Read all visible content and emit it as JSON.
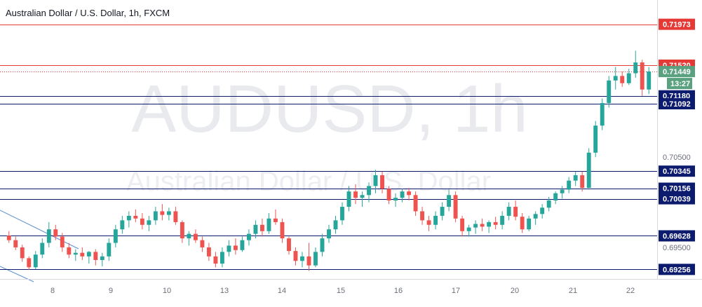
{
  "chart_data": {
    "type": "candlestick",
    "title": "Australian Dollar / U.S. Dollar, 1h, FXCM",
    "watermark": {
      "symbol": "AUDUSD, 1h",
      "name": "Australian Dollar / U.S. Dollar"
    },
    "x_tick_labels": [
      "8",
      "9",
      "10",
      "13",
      "14",
      "15",
      "16",
      "17",
      "20",
      "21",
      "22"
    ],
    "y_tick_labels": [
      "0.70500",
      "0.69500"
    ],
    "ylim": [
      0.6915,
      0.7218
    ],
    "colors": {
      "up": "#26a69a",
      "down": "#ef5350",
      "resistance": "#e53935",
      "support": "#0d1b6e",
      "last_price_bg": "#5aa17f",
      "countdown_bg": "#5aa17f"
    },
    "resistance_levels": [
      "0.71973",
      "0.71520"
    ],
    "support_levels": [
      "0.71180",
      "0.71092",
      "0.70345",
      "0.70156",
      "0.70039",
      "0.69628",
      "0.69256"
    ],
    "last_price": {
      "value": "0.71449",
      "countdown": "13:27"
    },
    "grid": false,
    "candles": [
      [
        0.6963,
        0.6968,
        0.6955,
        0.6958
      ],
      [
        0.6958,
        0.6962,
        0.6947,
        0.695
      ],
      [
        0.695,
        0.6953,
        0.6934,
        0.6938
      ],
      [
        0.6938,
        0.694,
        0.6925,
        0.6928
      ],
      [
        0.6928,
        0.6946,
        0.6926,
        0.6942
      ],
      [
        0.6942,
        0.696,
        0.6938,
        0.6955
      ],
      [
        0.6955,
        0.6978,
        0.695,
        0.697
      ],
      [
        0.697,
        0.6975,
        0.6958,
        0.6962
      ],
      [
        0.6962,
        0.6966,
        0.6945,
        0.695
      ],
      [
        0.695,
        0.6955,
        0.6938,
        0.6942
      ],
      [
        0.6942,
        0.6948,
        0.6935,
        0.6944
      ],
      [
        0.6944,
        0.695,
        0.6936,
        0.694
      ],
      [
        0.694,
        0.6946,
        0.6932,
        0.6945
      ],
      [
        0.6945,
        0.6948,
        0.693,
        0.6936
      ],
      [
        0.6936,
        0.6944,
        0.6929,
        0.694
      ],
      [
        0.694,
        0.696,
        0.6935,
        0.6955
      ],
      [
        0.6955,
        0.6975,
        0.695,
        0.697
      ],
      [
        0.697,
        0.6985,
        0.6965,
        0.698
      ],
      [
        0.698,
        0.699,
        0.6972,
        0.6985
      ],
      [
        0.6985,
        0.6992,
        0.6978,
        0.6982
      ],
      [
        0.6982,
        0.6988,
        0.697,
        0.6975
      ],
      [
        0.6975,
        0.6985,
        0.6968,
        0.698
      ],
      [
        0.698,
        0.6995,
        0.6975,
        0.699
      ],
      [
        0.699,
        0.6998,
        0.698,
        0.6986
      ],
      [
        0.6986,
        0.6994,
        0.698,
        0.699
      ],
      [
        0.699,
        0.6995,
        0.6975,
        0.6978
      ],
      [
        0.6978,
        0.698,
        0.6955,
        0.696
      ],
      [
        0.696,
        0.6968,
        0.6952,
        0.6965
      ],
      [
        0.6965,
        0.697,
        0.6955,
        0.6958
      ],
      [
        0.6958,
        0.6962,
        0.6945,
        0.695
      ],
      [
        0.695,
        0.6955,
        0.6935,
        0.694
      ],
      [
        0.694,
        0.6945,
        0.6928,
        0.6932
      ],
      [
        0.6932,
        0.695,
        0.6928,
        0.6945
      ],
      [
        0.6945,
        0.6958,
        0.694,
        0.6952
      ],
      [
        0.6952,
        0.696,
        0.6942,
        0.6947
      ],
      [
        0.6947,
        0.6962,
        0.6945,
        0.6958
      ],
      [
        0.6958,
        0.697,
        0.6952,
        0.6965
      ],
      [
        0.6965,
        0.698,
        0.696,
        0.6975
      ],
      [
        0.6975,
        0.6982,
        0.6962,
        0.6968
      ],
      [
        0.6968,
        0.6988,
        0.6965,
        0.6982
      ],
      [
        0.6982,
        0.6992,
        0.6975,
        0.6978
      ],
      [
        0.6978,
        0.6982,
        0.6955,
        0.696
      ],
      [
        0.696,
        0.6962,
        0.6942,
        0.6946
      ],
      [
        0.6946,
        0.695,
        0.693,
        0.6935
      ],
      [
        0.6935,
        0.6945,
        0.6928,
        0.694
      ],
      [
        0.694,
        0.6955,
        0.6924,
        0.693
      ],
      [
        0.693,
        0.695,
        0.6928,
        0.6945
      ],
      [
        0.6945,
        0.6965,
        0.694,
        0.696
      ],
      [
        0.696,
        0.6975,
        0.6955,
        0.697
      ],
      [
        0.697,
        0.6985,
        0.6965,
        0.698
      ],
      [
        0.698,
        0.7,
        0.6975,
        0.6995
      ],
      [
        0.6995,
        0.7018,
        0.699,
        0.7012
      ],
      [
        0.7012,
        0.702,
        0.6998,
        0.7005
      ],
      [
        0.7005,
        0.7012,
        0.6995,
        0.7008
      ],
      [
        0.7008,
        0.7022,
        0.7,
        0.7018
      ],
      [
        0.7018,
        0.7036,
        0.701,
        0.703
      ],
      [
        0.703,
        0.7034,
        0.701,
        0.7015
      ],
      [
        0.7015,
        0.7018,
        0.6998,
        0.7002
      ],
      [
        0.7002,
        0.701,
        0.6995,
        0.7005
      ],
      [
        0.7005,
        0.7015,
        0.7,
        0.7012
      ],
      [
        0.7012,
        0.7016,
        0.7002,
        0.7008
      ],
      [
        0.7008,
        0.7012,
        0.6985,
        0.699
      ],
      [
        0.699,
        0.6995,
        0.6975,
        0.698
      ],
      [
        0.698,
        0.6985,
        0.6968,
        0.6975
      ],
      [
        0.6975,
        0.699,
        0.697,
        0.6985
      ],
      [
        0.6985,
        0.7,
        0.698,
        0.6995
      ],
      [
        0.6995,
        0.7014,
        0.699,
        0.7008
      ],
      [
        0.7008,
        0.7012,
        0.6978,
        0.6982
      ],
      [
        0.6982,
        0.6985,
        0.6962,
        0.6968
      ],
      [
        0.6968,
        0.6975,
        0.6962,
        0.6972
      ],
      [
        0.6972,
        0.698,
        0.6965,
        0.6976
      ],
      [
        0.6976,
        0.6982,
        0.6968,
        0.6973
      ],
      [
        0.6973,
        0.698,
        0.6966,
        0.6978
      ],
      [
        0.6978,
        0.6984,
        0.697,
        0.6975
      ],
      [
        0.6975,
        0.699,
        0.697,
        0.6985
      ],
      [
        0.6985,
        0.7,
        0.698,
        0.6995
      ],
      [
        0.6995,
        0.7002,
        0.698,
        0.6984
      ],
      [
        0.6984,
        0.6988,
        0.6966,
        0.697
      ],
      [
        0.697,
        0.6985,
        0.6968,
        0.6982
      ],
      [
        0.6982,
        0.699,
        0.6975,
        0.6987
      ],
      [
        0.6987,
        0.6998,
        0.6982,
        0.6994
      ],
      [
        0.6994,
        0.7006,
        0.699,
        0.7002
      ],
      [
        0.7002,
        0.7012,
        0.6998,
        0.701
      ],
      [
        0.701,
        0.7018,
        0.7004,
        0.7014
      ],
      [
        0.7014,
        0.7028,
        0.701,
        0.7024
      ],
      [
        0.7024,
        0.7034,
        0.7018,
        0.703
      ],
      [
        0.703,
        0.7034,
        0.7012,
        0.7016
      ],
      [
        0.7016,
        0.706,
        0.7014,
        0.7055
      ],
      [
        0.7055,
        0.709,
        0.705,
        0.7085
      ],
      [
        0.7085,
        0.7115,
        0.708,
        0.711
      ],
      [
        0.711,
        0.714,
        0.7105,
        0.7135
      ],
      [
        0.7135,
        0.715,
        0.7125,
        0.714
      ],
      [
        0.714,
        0.7145,
        0.7128,
        0.7132
      ],
      [
        0.7132,
        0.7148,
        0.713,
        0.7143
      ],
      [
        0.7143,
        0.7168,
        0.7138,
        0.7155
      ],
      [
        0.7155,
        0.7158,
        0.7118,
        0.7125
      ],
      [
        0.7125,
        0.715,
        0.712,
        0.7145
      ]
    ]
  }
}
